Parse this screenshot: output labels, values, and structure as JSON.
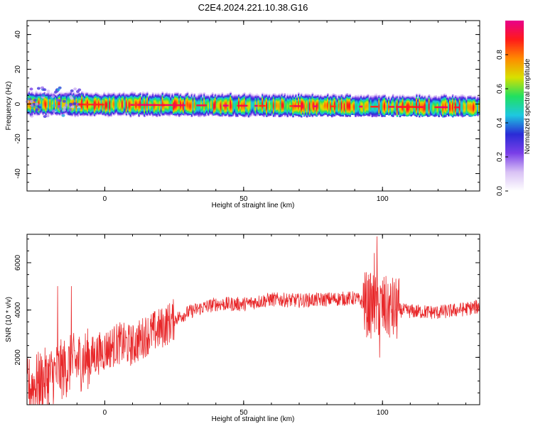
{
  "title": "C2E4.2024.221.10.38.G16",
  "chart_data": [
    {
      "type": "heatmap",
      "xlabel": "Height of straight line (km)",
      "ylabel": "Frequency (Hz)",
      "xlim": [
        -28,
        135
      ],
      "ylim": [
        -50,
        48
      ],
      "xticks": [
        0,
        50,
        100
      ],
      "yticks": [
        -40,
        -20,
        0,
        20,
        40
      ],
      "colorbar": {
        "label": "Normalized spectral amplitude",
        "range": [
          0,
          1
        ],
        "ticks": [
          0.0,
          0.2,
          0.4,
          0.6,
          0.8
        ],
        "tick_labels": [
          "0.0",
          "0.2",
          "0.4",
          "0.6",
          "0.8"
        ],
        "colors": [
          "#ffffff",
          "#d9c2f5",
          "#7a3fe8",
          "#2a2bd6",
          "#1ec8e0",
          "#20e060",
          "#d8e000",
          "#ff8a00",
          "#ff1a1a",
          "#e8008a"
        ]
      },
      "band": {
        "center_freq_start": 0,
        "center_freq_end": -2,
        "half_width_hz": 3
      },
      "scatter_hotspots_x_range": [
        -28,
        -8
      ]
    },
    {
      "type": "line",
      "xlabel": "Height of straight line (km)",
      "ylabel": "SNR (10 * v/v)",
      "xlim": [
        -28,
        135
      ],
      "ylim": [
        0,
        7200
      ],
      "xticks": [
        0,
        50,
        100
      ],
      "yticks": [
        2000,
        4000,
        6000
      ],
      "color": "#e8282a",
      "trend": [
        [
          -28,
          700
        ],
        [
          -20,
          1200
        ],
        [
          -12,
          1700
        ],
        [
          -5,
          2000
        ],
        [
          0,
          2300
        ],
        [
          5,
          2600
        ],
        [
          10,
          2500
        ],
        [
          15,
          2950
        ],
        [
          20,
          3200
        ],
        [
          25,
          3600
        ],
        [
          30,
          3900
        ],
        [
          35,
          4100
        ],
        [
          40,
          4250
        ],
        [
          50,
          4250
        ],
        [
          60,
          4450
        ],
        [
          70,
          4400
        ],
        [
          80,
          4450
        ],
        [
          90,
          4500
        ],
        [
          95,
          4200
        ],
        [
          100,
          4100
        ],
        [
          105,
          4000
        ],
        [
          110,
          3950
        ],
        [
          120,
          3900
        ],
        [
          130,
          4050
        ],
        [
          135,
          4150
        ]
      ],
      "spikes": [
        [
          -17,
          5000
        ],
        [
          -12,
          5000
        ],
        [
          97,
          6400
        ],
        [
          98,
          7100
        ],
        [
          102,
          5100
        ],
        [
          99,
          2000
        ]
      ]
    }
  ]
}
